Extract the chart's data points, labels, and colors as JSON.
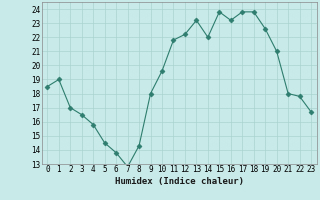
{
  "x": [
    0,
    1,
    2,
    3,
    4,
    5,
    6,
    7,
    8,
    9,
    10,
    11,
    12,
    13,
    14,
    15,
    16,
    17,
    18,
    19,
    20,
    21,
    22,
    23
  ],
  "y": [
    18.5,
    19.0,
    17.0,
    16.5,
    15.8,
    14.5,
    13.8,
    12.8,
    14.3,
    18.0,
    19.6,
    21.8,
    22.2,
    23.2,
    22.0,
    23.8,
    23.2,
    23.8,
    23.8,
    22.6,
    21.0,
    18.0,
    17.8,
    16.7
  ],
  "line_color": "#2e7d6e",
  "marker": "D",
  "marker_size": 2.5,
  "bg_color": "#c8eae8",
  "grid_color": "#aad4d0",
  "xlabel": "Humidex (Indice chaleur)",
  "ylim": [
    13,
    24.5
  ],
  "xlim": [
    -0.5,
    23.5
  ],
  "yticks": [
    13,
    14,
    15,
    16,
    17,
    18,
    19,
    20,
    21,
    22,
    23,
    24
  ],
  "xticks": [
    0,
    1,
    2,
    3,
    4,
    5,
    6,
    7,
    8,
    9,
    10,
    11,
    12,
    13,
    14,
    15,
    16,
    17,
    18,
    19,
    20,
    21,
    22,
    23
  ],
  "tick_fontsize": 5.5,
  "label_fontsize": 6.5,
  "line_width": 0.8
}
